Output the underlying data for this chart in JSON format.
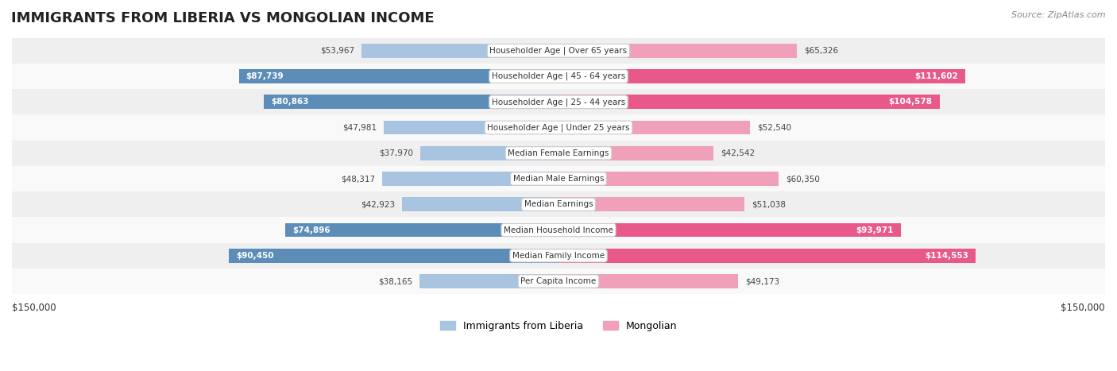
{
  "title": "IMMIGRANTS FROM LIBERIA VS MONGOLIAN INCOME",
  "source": "Source: ZipAtlas.com",
  "categories": [
    "Per Capita Income",
    "Median Family Income",
    "Median Household Income",
    "Median Earnings",
    "Median Male Earnings",
    "Median Female Earnings",
    "Householder Age | Under 25 years",
    "Householder Age | 25 - 44 years",
    "Householder Age | 45 - 64 years",
    "Householder Age | Over 65 years"
  ],
  "liberia_values": [
    38165,
    90450,
    74896,
    42923,
    48317,
    37970,
    47981,
    80863,
    87739,
    53967
  ],
  "mongolian_values": [
    49173,
    114553,
    93971,
    51038,
    60350,
    42542,
    52540,
    104578,
    111602,
    65326
  ],
  "liberia_labels": [
    "$38,165",
    "$90,450",
    "$74,896",
    "$42,923",
    "$48,317",
    "$37,970",
    "$47,981",
    "$80,863",
    "$87,739",
    "$53,967"
  ],
  "mongolian_labels": [
    "$49,173",
    "$114,553",
    "$93,971",
    "$51,038",
    "$60,350",
    "$42,542",
    "$52,540",
    "$104,578",
    "$111,602",
    "$65,326"
  ],
  "liberia_color_light": "#a8c4e0",
  "liberia_color_dark": "#5b8db8",
  "mongolian_color_light": "#f0a0b8",
  "mongolian_color_dark": "#e8588a",
  "max_value": 150000,
  "x_label_left": "$150,000",
  "x_label_right": "$150,000",
  "legend_liberia": "Immigrants from Liberia",
  "legend_mongolian": "Mongolian",
  "bar_height": 0.55,
  "bg_color": "#f5f5f5",
  "row_bg_light": "#f9f9f9",
  "row_bg_dark": "#efefef"
}
